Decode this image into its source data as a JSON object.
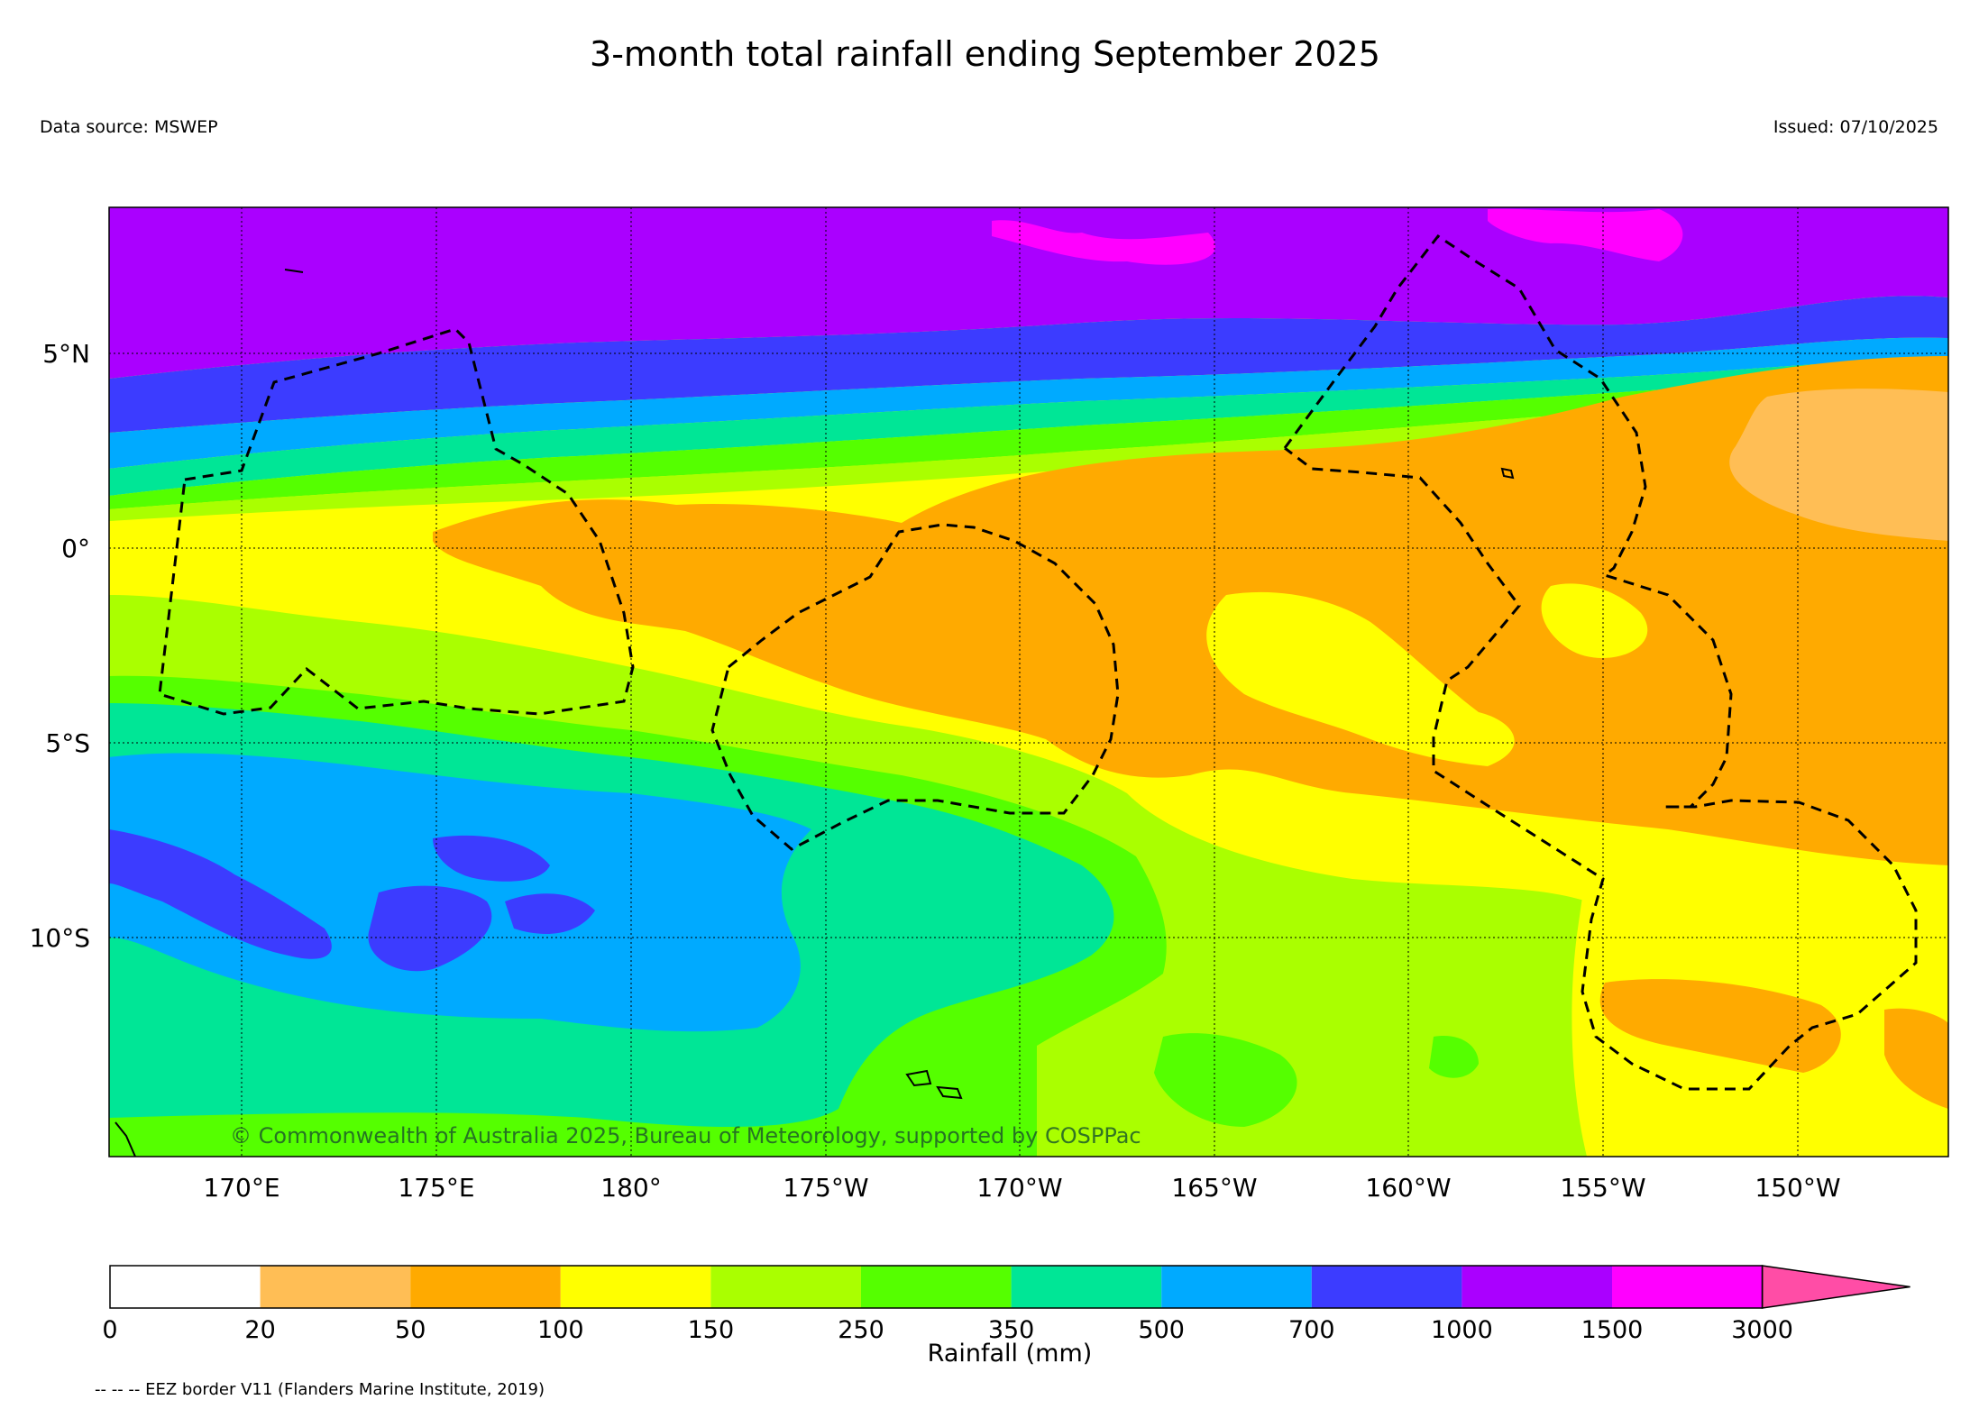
{
  "title": "3-month total rainfall ending September 2025",
  "data_source": "Data source: MSWEP",
  "issued": "Issued: 07/10/2025",
  "credit": "© Commonwealth of Australia 2025, Bureau of Meteorology, supported by COSPPac",
  "lat_ticks": [
    "5°N",
    "0°",
    "5°S",
    "10°S"
  ],
  "lon_ticks": [
    "170°E",
    "175°E",
    "180°",
    "175°W",
    "170°W",
    "165°W",
    "160°W",
    "155°W",
    "150°W"
  ],
  "colorbar": {
    "label": "Rainfall (mm)",
    "ticks": [
      "0",
      "20",
      "50",
      "100",
      "150",
      "250",
      "350",
      "500",
      "700",
      "1000",
      "1500",
      "3000"
    ],
    "colors": [
      "#ffffff",
      "#ffbe55",
      "#ffaa00",
      "#ffff00",
      "#aaff00",
      "#55ff00",
      "#00e696",
      "#00aaff",
      "#3c3cff",
      "#aa00ff",
      "#ff00ff",
      "#ff4da6"
    ]
  },
  "footnote": "-- -- -- EEZ border V11 (Flanders Marine Institute, 2019)"
}
